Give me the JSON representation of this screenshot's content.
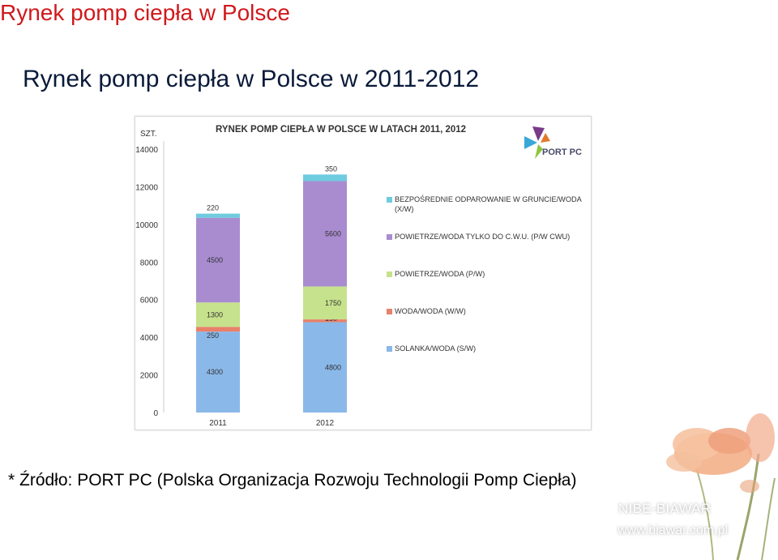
{
  "header": {
    "title": "Rynek pomp ciepła w Polsce"
  },
  "main_title": "Rynek pomp ciepła w Polsce w 2011-2012",
  "source": "* Źródło: PORT PC (Polska Organizacja Rozwoju Technologii Pomp Ciepła)",
  "brand": {
    "name": "NIBE-BIAWAR",
    "url": "www.biawar.com.pl"
  },
  "logo": {
    "text": "PORT PC",
    "colors": [
      "#7a3a8a",
      "#3aa7d6",
      "#8cc63e",
      "#e07a2a"
    ]
  },
  "chart_data": {
    "type": "bar",
    "stacked": true,
    "title": "RYNEK POMP CIEPŁA W POLSCE W LATACH 2011, 2012",
    "unit_label": "SZT.",
    "categories": [
      "2011",
      "2012"
    ],
    "ylim": [
      0,
      14000
    ],
    "yticks": [
      0,
      2000,
      4000,
      6000,
      8000,
      10000,
      12000,
      14000
    ],
    "grid": false,
    "legend_position": "right",
    "series": [
      {
        "name": "SOLANKA/WODA (S/W)",
        "values": [
          4300,
          4800
        ],
        "color": "#8ab8e8"
      },
      {
        "name": "WODA/WODA (W/W)",
        "values": [
          250,
          150
        ],
        "color": "#e8806a"
      },
      {
        "name": "POWIETRZE/WODA (P/W)",
        "values": [
          1300,
          1750
        ],
        "color": "#c6e28c"
      },
      {
        "name": "POWIETRZE/WODA TYLKO DO C.W.U. (P/W CWU)",
        "values": [
          4500,
          5600
        ],
        "color": "#a98cd0"
      },
      {
        "name": "BEZPOŚREDNIE ODPAROWANIE W GRUNCIE/WODA (X/W)",
        "values": [
          220,
          350
        ],
        "color": "#6ecbe0"
      }
    ],
    "legend_order": [
      "BEZPOŚREDNIE ODPAROWANIE W GRUNCIE/WODA (X/W)",
      "POWIETRZE/WODA TYLKO DO C.W.U. (P/W CWU)",
      "POWIETRZE/WODA (P/W)",
      "WODA/WODA (W/W)",
      "SOLANKA/WODA (S/W)"
    ]
  }
}
